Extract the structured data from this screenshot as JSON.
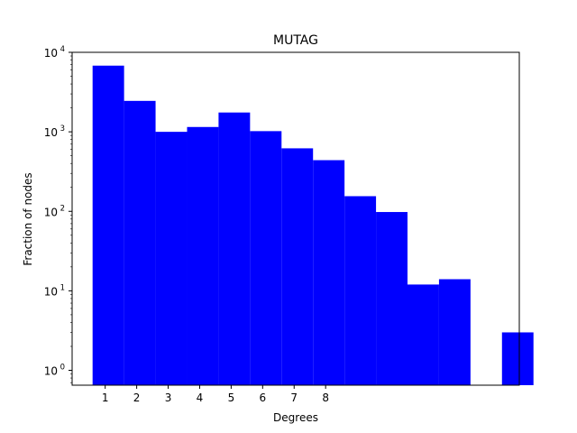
{
  "chart_data": {
    "type": "bar",
    "title": "MUTAG",
    "xlabel": "Degrees",
    "ylabel": "Fraction of nodes",
    "yscale": "log",
    "ylim": [
      0.65,
      10000
    ],
    "xlim": [
      -0.05,
      14.15
    ],
    "xticks": [
      1,
      2,
      3,
      4,
      5,
      6,
      7,
      8
    ],
    "yticks": [
      {
        "value": 1,
        "label": "10^0",
        "base": "10",
        "exp": "0"
      },
      {
        "value": 10,
        "label": "10^1",
        "base": "10",
        "exp": "1"
      },
      {
        "value": 100,
        "label": "10^2",
        "base": "10",
        "exp": "2"
      },
      {
        "value": 1000,
        "label": "10^3",
        "base": "10",
        "exp": "3"
      },
      {
        "value": 10000,
        "label": "10^4",
        "base": "10",
        "exp": "4"
      }
    ],
    "bar_color": "#0000ff",
    "grid": false,
    "bins": [
      {
        "start": 0.6,
        "end": 1.6,
        "value": 6800
      },
      {
        "start": 1.6,
        "end": 2.6,
        "value": 2450
      },
      {
        "start": 2.6,
        "end": 3.6,
        "value": 1000
      },
      {
        "start": 3.6,
        "end": 4.6,
        "value": 1150
      },
      {
        "start": 4.6,
        "end": 5.6,
        "value": 1750
      },
      {
        "start": 5.6,
        "end": 6.6,
        "value": 1020
      },
      {
        "start": 6.6,
        "end": 7.6,
        "value": 620
      },
      {
        "start": 7.6,
        "end": 8.6,
        "value": 440
      },
      {
        "start": 8.6,
        "end": 9.6,
        "value": 155
      },
      {
        "start": 9.6,
        "end": 10.6,
        "value": 98
      },
      {
        "start": 10.6,
        "end": 11.6,
        "value": 12
      },
      {
        "start": 11.6,
        "end": 12.6,
        "value": 14
      },
      {
        "start": 13.6,
        "end": 14.6,
        "value": 3
      }
    ]
  }
}
